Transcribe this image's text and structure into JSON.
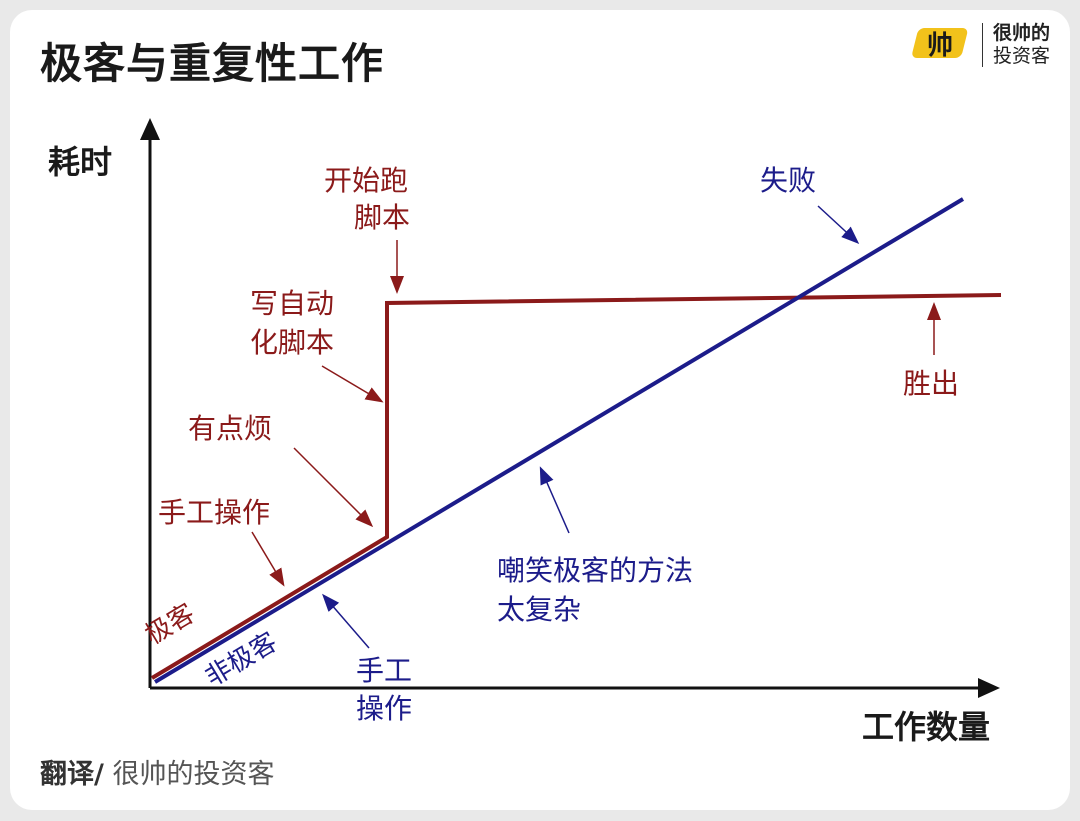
{
  "header": {
    "title": "极客与重复性工作",
    "brand_name_line1": "很帅的",
    "brand_name_line2": "投资客",
    "brand_logo_text": "帅"
  },
  "axes": {
    "y_label": "耗时",
    "x_label": "工作数量"
  },
  "lines": {
    "geek": {
      "label": "极客",
      "color": "#8b1a1a"
    },
    "non_geek": {
      "label": "非极客",
      "color": "#1c1c8a"
    }
  },
  "annotations": {
    "geek_manual": "手工操作",
    "geek_annoying": "有点烦",
    "geek_write_script_1": "写自动",
    "geek_write_script_2": "化脚本",
    "geek_run_script_1": "开始跑",
    "geek_run_script_2": "脚本",
    "geek_wins": "胜出",
    "nongeek_fail": "失败",
    "nongeek_mock_1": "嘲笑极客的方法",
    "nongeek_mock_2": "太复杂",
    "nongeek_manual_1": "手工",
    "nongeek_manual_2": "操作"
  },
  "footer": {
    "credit_bold": "翻译/",
    "credit_name": " 很帅的投资客"
  }
}
